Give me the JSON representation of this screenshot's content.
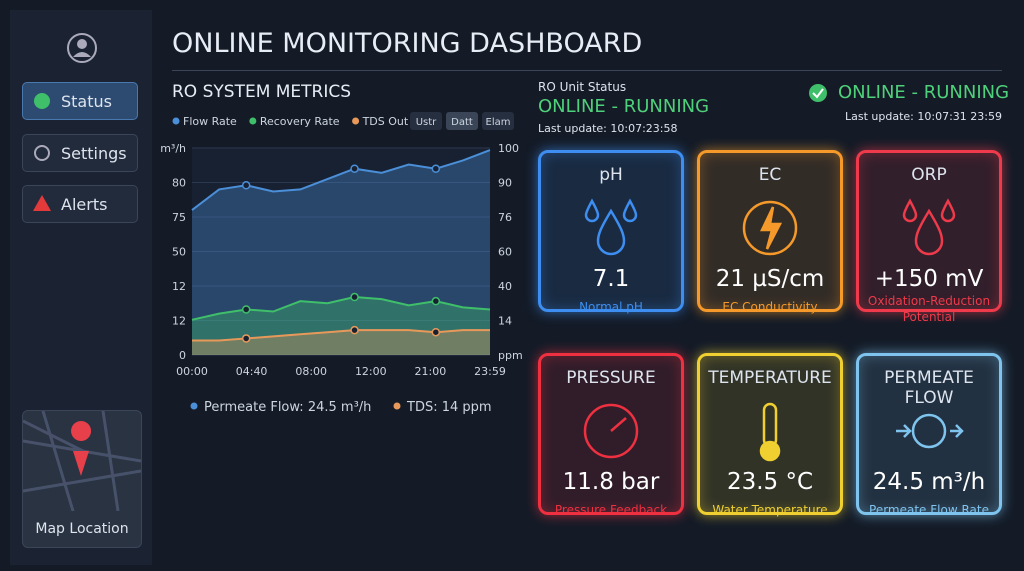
{
  "sidebar": {
    "items": [
      {
        "label": "Status"
      },
      {
        "label": "Settings"
      },
      {
        "label": "Alerts"
      }
    ],
    "map_label": "Map Location"
  },
  "header": {
    "title": "ONLINE MONITORING DASHBOARD"
  },
  "chart_data": {
    "type": "area",
    "title": "RO SYSTEM METRICS",
    "buttons": [
      "Ustr",
      "Datt",
      "Elam"
    ],
    "x_labels": [
      "00:00",
      "04:40",
      "08:00",
      "12:00",
      "21:00",
      "23:59"
    ],
    "y_labels": [
      "m³/h",
      "80",
      "75",
      "50",
      "12",
      "12",
      "0"
    ],
    "y2_labels": [
      "100",
      "90",
      "76",
      "60",
      "40",
      "14",
      "ppm"
    ],
    "ylim": [
      0,
      100
    ],
    "series": [
      {
        "name": "Flow Rate",
        "color": "#4a8fd8",
        "values": [
          70,
          80,
          82,
          79,
          80,
          85,
          90,
          88,
          92,
          90,
          94,
          99
        ]
      },
      {
        "name": "Recovery Rate",
        "color": "#3fbf6a",
        "values": [
          17,
          20,
          22,
          21,
          26,
          25,
          28,
          27,
          24,
          26,
          23,
          22
        ]
      },
      {
        "name": "TDS Out",
        "color": "#e8995a",
        "values": [
          7,
          7,
          8,
          9,
          10,
          11,
          12,
          12,
          12,
          11,
          12,
          12
        ]
      }
    ],
    "footer": [
      "Permeate Flow: 24.5 m³/h",
      "TDS: 14 ppm"
    ]
  },
  "status": {
    "label": "RO Unit Status",
    "state": "ONLINE - RUNNING",
    "last_update": "Last update: 10:07:23:58"
  },
  "status_right": {
    "state": "ONLINE - RUNNING",
    "last_update": "Last update: 10:07:31 23:59"
  },
  "cards": [
    {
      "title": "pH",
      "value": "7.1",
      "caption": "Normal pH",
      "color": "#3d8ef0"
    },
    {
      "title": "EC",
      "value": "21 µS/cm",
      "caption": "EC Conductivity",
      "color": "#f59a2a"
    },
    {
      "title": "ORP",
      "value": "+150 mV",
      "caption": "Oxidation-Reduction Potential",
      "color": "#ee3a4a"
    },
    {
      "title": "PRESSURE",
      "value": "11.8 bar",
      "caption": "Pressure Feedback",
      "color": "#ee3040"
    },
    {
      "title": "TEMPERATURE",
      "value": "23.5 °C",
      "caption": "Water Temperature",
      "color": "#f0d030"
    },
    {
      "title": "PERMEATE FLOW",
      "value": "24.5 m³/h",
      "caption": "Permeate Flow Rate",
      "color": "#7ec4ee"
    }
  ]
}
